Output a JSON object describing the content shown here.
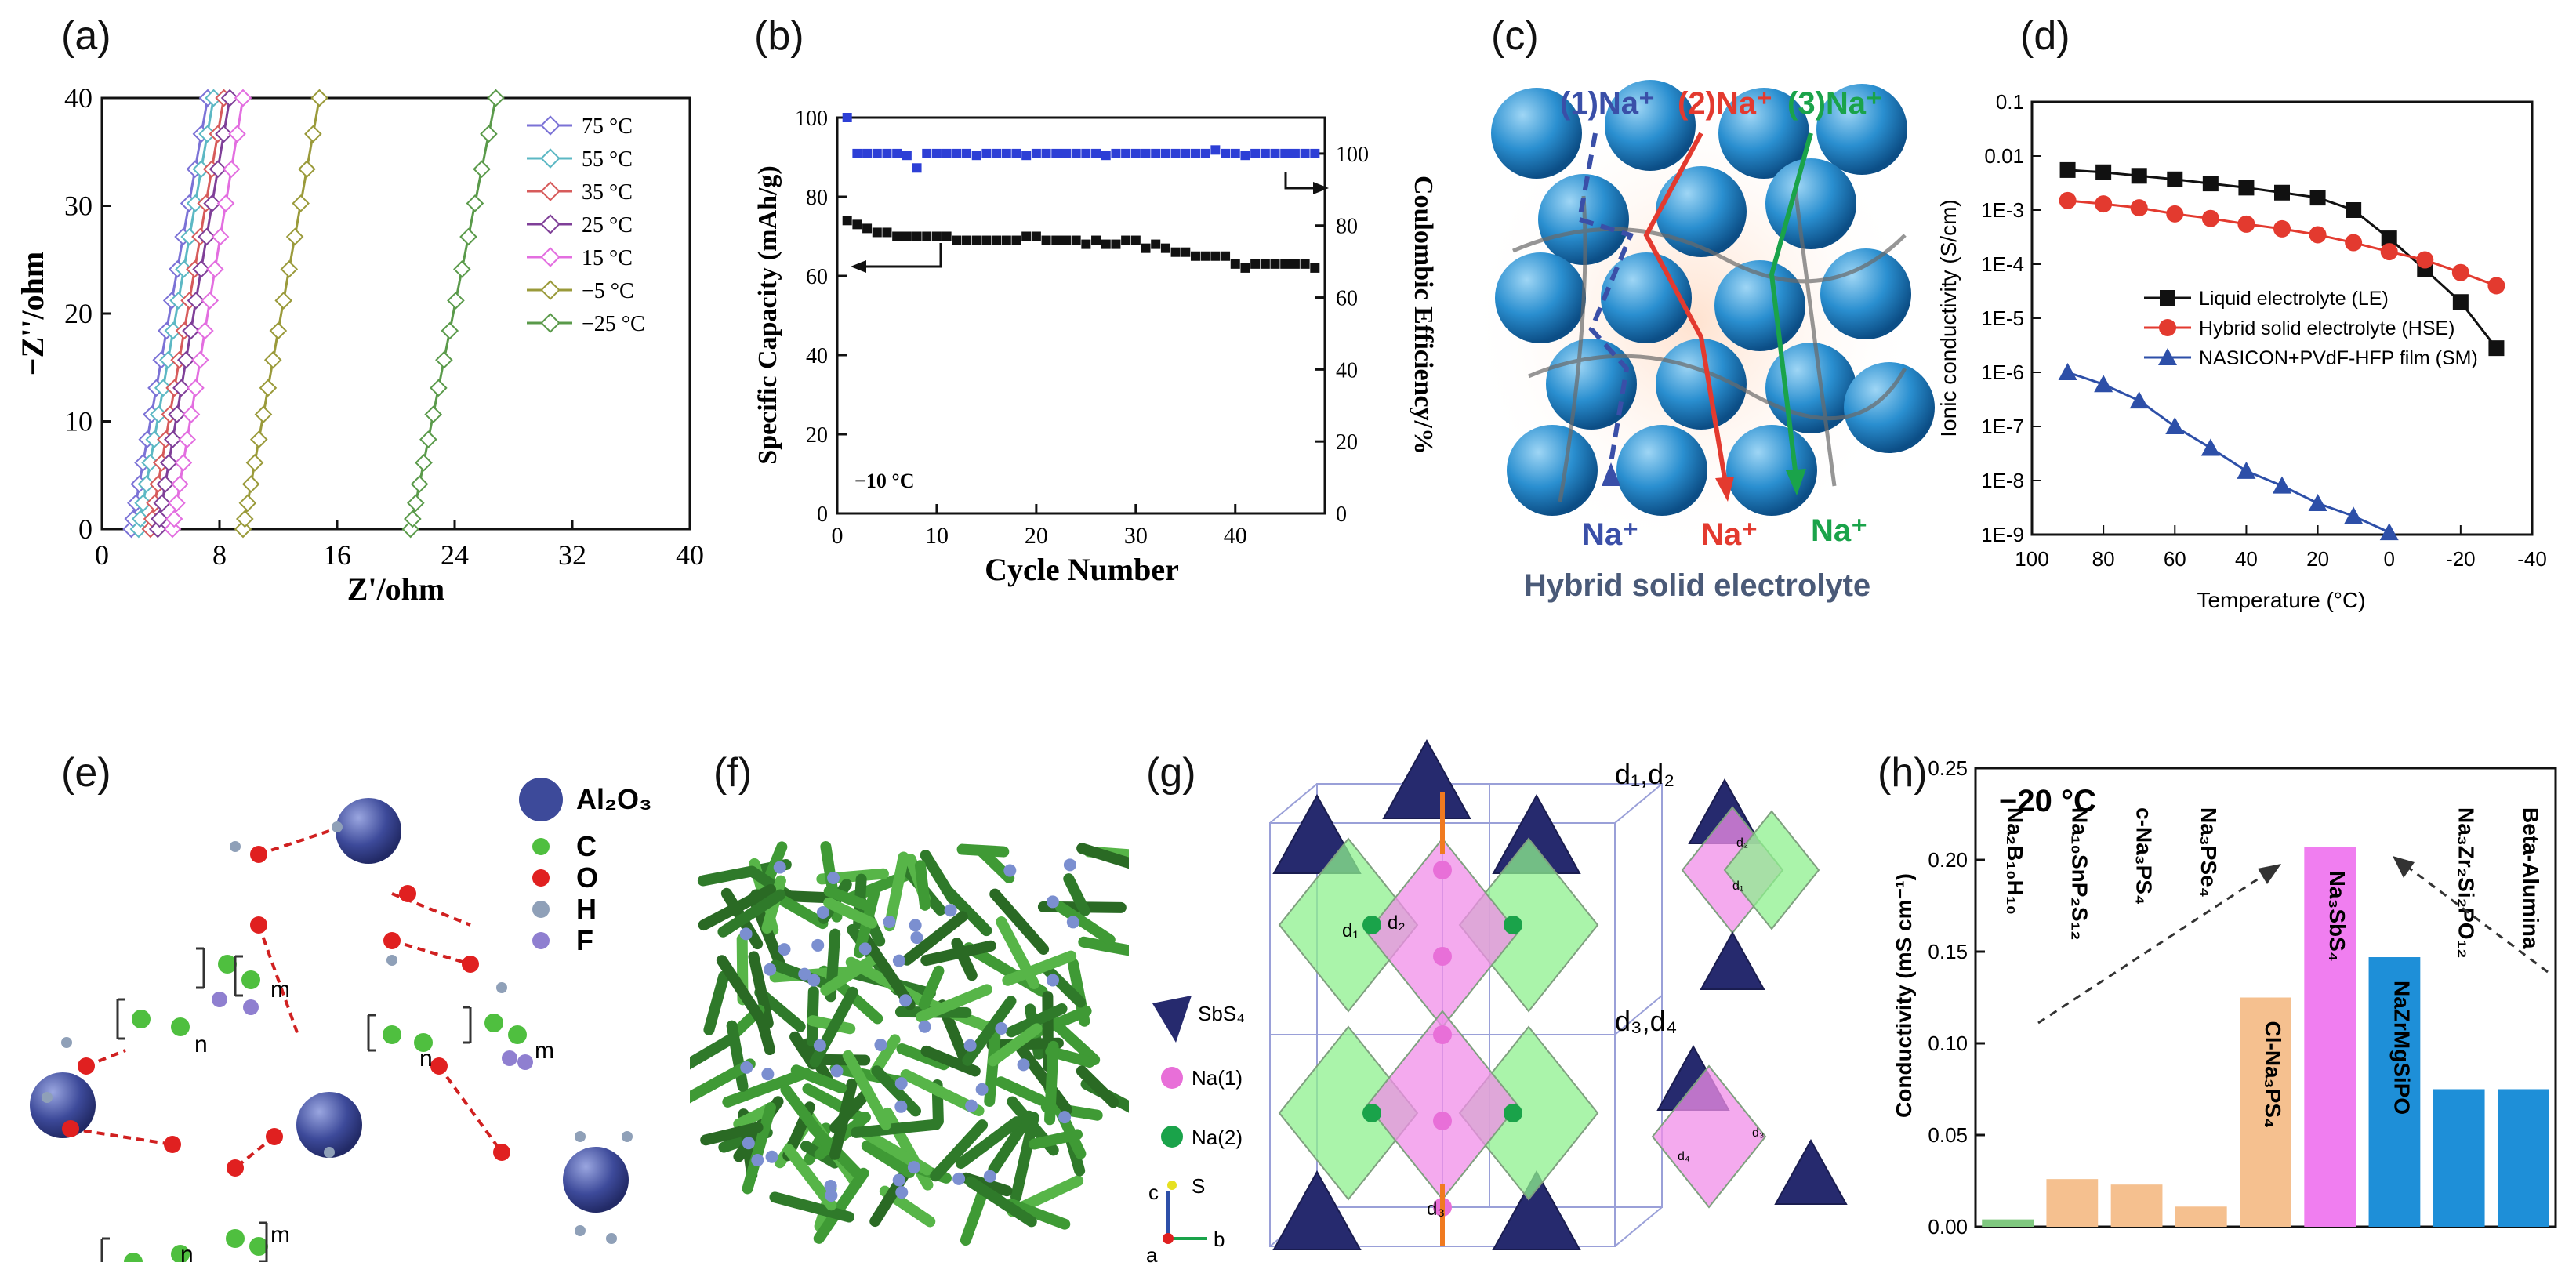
{
  "figure": {
    "panel_labels": [
      "(a)",
      "(b)",
      "(c)",
      "(d)",
      "(e)",
      "(f)",
      "(g)",
      "(h)"
    ]
  },
  "chart_data": [
    {
      "id": "a",
      "type": "line",
      "xlabel": "Z'/ohm",
      "ylabel": "−Z''/ohm",
      "xlim": [
        0,
        40
      ],
      "ylim": [
        0,
        40
      ],
      "xticks": [
        0,
        8,
        16,
        24,
        32,
        40
      ],
      "yticks": [
        0,
        10,
        20,
        30,
        40
      ],
      "series": [
        {
          "name": "75 °C",
          "color": "#7b72d6",
          "x": [
            2.0,
            7.2
          ],
          "y": [
            0,
            40
          ]
        },
        {
          "name": "55 °C",
          "color": "#5cb8c4",
          "x": [
            2.5,
            7.6
          ],
          "y": [
            0,
            40
          ]
        },
        {
          "name": "35 °C",
          "color": "#d75b5b",
          "x": [
            3.3,
            8.3
          ],
          "y": [
            0,
            40
          ]
        },
        {
          "name": "25 °C",
          "color": "#7f3f98",
          "x": [
            3.8,
            8.7
          ],
          "y": [
            0,
            40
          ]
        },
        {
          "name": "15 °C",
          "color": "#e36ee0",
          "x": [
            4.8,
            9.6
          ],
          "y": [
            0,
            40
          ]
        },
        {
          "name": "−5 °C",
          "color": "#9a9a3a",
          "x": [
            9.6,
            14.8
          ],
          "y": [
            0,
            40
          ]
        },
        {
          "name": "−25 °C",
          "color": "#5a9a4a",
          "x": [
            21.0,
            26.8
          ],
          "y": [
            0,
            40
          ]
        }
      ]
    },
    {
      "id": "b",
      "type": "scatter",
      "xlabel": "Cycle Number",
      "ylabel": "Specific Capacity (mAh/g)",
      "ylabel_right": "Coulombic Efficiency/%",
      "annotation": "−10 °C",
      "xlim": [
        0,
        49
      ],
      "ylim": [
        0,
        100
      ],
      "ylim_right": [
        0,
        110
      ],
      "xticks": [
        0,
        10,
        20,
        30,
        40
      ],
      "yticks": [
        0,
        20,
        40,
        60,
        80,
        100
      ],
      "yticks_right": [
        0,
        20,
        40,
        60,
        80,
        100
      ],
      "series": [
        {
          "name": "Specific capacity",
          "color": "#111111",
          "axis": "left",
          "x": [
            1,
            2,
            3,
            4,
            5,
            6,
            7,
            8,
            9,
            10,
            11,
            12,
            13,
            14,
            15,
            16,
            17,
            18,
            19,
            20,
            21,
            22,
            23,
            24,
            25,
            26,
            27,
            28,
            29,
            30,
            31,
            32,
            33,
            34,
            35,
            36,
            37,
            38,
            39,
            40,
            41,
            42,
            43,
            44,
            45,
            46,
            47,
            48
          ],
          "y": [
            74,
            73,
            72,
            71,
            71,
            70,
            70,
            70,
            70,
            70,
            70,
            69,
            69,
            69,
            69,
            69,
            69,
            69,
            70,
            70,
            69,
            69,
            69,
            69,
            68,
            69,
            68,
            68,
            69,
            69,
            67,
            68,
            67,
            66,
            66,
            65,
            65,
            65,
            65,
            63,
            62,
            63,
            63,
            63,
            63,
            63,
            63,
            62
          ]
        },
        {
          "name": "Coulombic efficiency",
          "color": "#2d3fd6",
          "axis": "right",
          "x": [
            1,
            2,
            3,
            4,
            5,
            6,
            7,
            8,
            9,
            10,
            11,
            12,
            13,
            14,
            15,
            16,
            17,
            18,
            19,
            20,
            21,
            22,
            23,
            24,
            25,
            26,
            27,
            28,
            29,
            30,
            31,
            32,
            33,
            34,
            35,
            36,
            37,
            38,
            39,
            40,
            41,
            42,
            43,
            44,
            45,
            46,
            47,
            48
          ],
          "y": [
            110,
            100,
            100,
            100,
            100,
            100,
            99.5,
            96,
            100,
            100,
            100,
            100,
            100,
            99.5,
            100,
            100,
            100,
            100,
            99.5,
            100,
            100,
            100,
            100,
            100,
            100,
            100,
            99.5,
            100,
            100,
            100,
            100,
            100,
            100,
            100,
            100,
            100,
            100,
            101,
            100,
            100,
            99.5,
            100,
            100,
            100,
            100,
            100,
            100,
            100
          ]
        }
      ]
    },
    {
      "id": "d",
      "type": "line",
      "xlabel": "Temperature (°C)",
      "ylabel": "Ionic conductivity (S/cm)",
      "yscale": "log",
      "xlim": [
        100,
        -40
      ],
      "ylim_exp": [
        -9,
        -1
      ],
      "xticks": [
        100,
        80,
        60,
        40,
        20,
        0,
        -20,
        -40
      ],
      "ytick_labels": [
        "0.1",
        "0.01",
        "1E-3",
        "1E-4",
        "1E-5",
        "1E-6",
        "1E-7",
        "1E-8",
        "1E-9"
      ],
      "series": [
        {
          "name": "Liquid electrolyte (LE)",
          "color": "#111111",
          "marker": "square",
          "x": [
            90,
            80,
            70,
            60,
            50,
            40,
            30,
            20,
            10,
            0,
            -10,
            -20,
            -30
          ],
          "y": [
            0.0055,
            0.005,
            0.0043,
            0.0037,
            0.0031,
            0.0026,
            0.0021,
            0.0017,
            0.001,
            0.0003,
            8e-05,
            2e-05,
            2.8e-06
          ]
        },
        {
          "name": "Hybrid solid electrolyte (HSE)",
          "color": "#e33a2f",
          "marker": "circle",
          "x": [
            90,
            80,
            70,
            60,
            50,
            40,
            30,
            20,
            10,
            0,
            -10,
            -20,
            -30
          ],
          "y": [
            0.0015,
            0.0013,
            0.0011,
            0.00085,
            0.0007,
            0.00055,
            0.00045,
            0.00035,
            0.00025,
            0.00017,
            0.00012,
            7e-05,
            4e-05
          ]
        },
        {
          "name": "NASICON+PVdF-HFP film (SM)",
          "color": "#2d4fa8",
          "marker": "triangle",
          "x": [
            90,
            80,
            70,
            60,
            50,
            40,
            30,
            20,
            10,
            0
          ],
          "y": [
            1e-06,
            6e-07,
            3e-07,
            1e-07,
            4e-08,
            1.5e-08,
            8e-09,
            3.8e-09,
            2.2e-09,
            1.1e-09
          ]
        }
      ]
    },
    {
      "id": "h",
      "type": "bar",
      "title": "−20 °C",
      "ylabel": "Conductivity (mS cm⁻¹)",
      "ylim": [
        0,
        0.25
      ],
      "yticks": [
        "0.00",
        "0.05",
        "0.10",
        "0.15",
        "0.20",
        "0.25"
      ],
      "categories": [
        "Na₂B₁₀H₁₀",
        "Na₁₀SnP₂S₁₂",
        "c-Na₃PS₄",
        "Na₃PSe₄",
        "Cl-Na₃PS₄",
        "Na₃SbS₄",
        "NaZrMgSiPO",
        "Na₃Zr₂Si₂PO₁₂",
        "Beta-Alumina"
      ],
      "values": [
        0.004,
        0.026,
        0.023,
        0.011,
        0.125,
        0.207,
        0.147,
        0.075,
        0.075
      ],
      "colors": [
        "#7fc87f",
        "#f5c08f",
        "#f5c08f",
        "#f5c08f",
        "#f5c08f",
        "#f07ef0",
        "#1e8fd8",
        "#1e8fd8",
        "#1e8fd8"
      ]
    }
  ],
  "diagram_c": {
    "paths": [
      "(1)Na⁺",
      "(2)Na⁺",
      "(3)Na⁺"
    ],
    "outputs": [
      "Na⁺",
      "Na⁺",
      "Na⁺"
    ],
    "path_colors": [
      "#3a4fa8",
      "#e33a2f",
      "#1aa34a"
    ],
    "caption": "Hybrid solid electrolyte"
  },
  "diagram_e": {
    "legend": [
      "Al₂O₃",
      "C",
      "O",
      "H",
      "F"
    ],
    "legend_colors": [
      "#3d4a9a",
      "#4fbf3f",
      "#e02020",
      "#8fa0b8",
      "#8f7fd0"
    ],
    "chain_labels": [
      "n",
      "m",
      "n",
      "m",
      "n",
      "m"
    ]
  },
  "diagram_g": {
    "legend": [
      "SbS₄",
      "Na(1)",
      "Na(2)",
      "S"
    ],
    "axes": [
      "a",
      "b",
      "c"
    ],
    "distance_labels": [
      "d₁",
      "d₂",
      "d₃"
    ],
    "inset_titles": [
      "d₁,d₂",
      "d₃,d₄"
    ],
    "inset_labels": [
      "d₂",
      "d₁",
      "d₃",
      "d₄"
    ]
  }
}
